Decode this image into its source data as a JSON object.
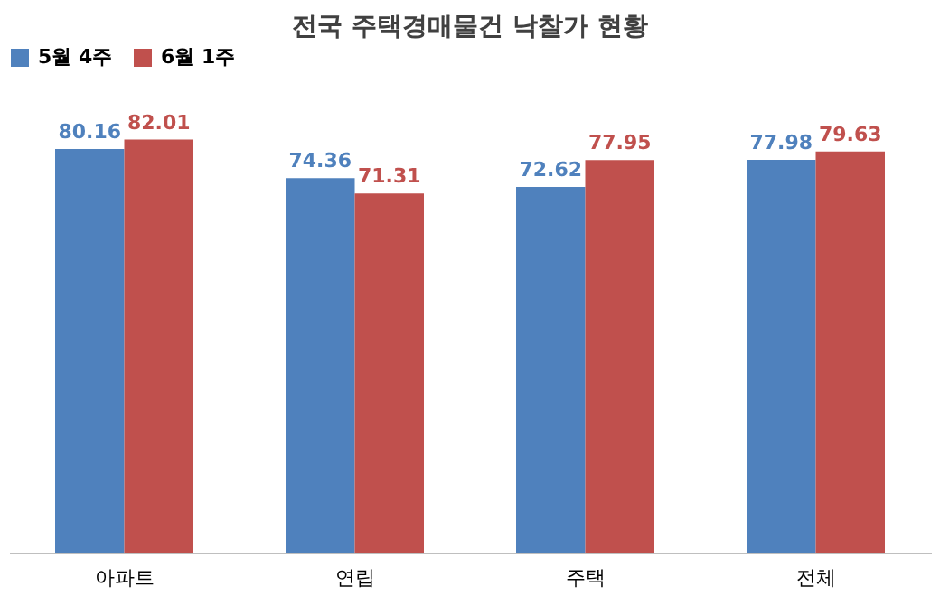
{
  "chart_data": {
    "type": "bar",
    "title": "전국 주택경매물건 낙찰가 현황",
    "categories": [
      "아파트",
      "연립",
      "주택",
      "전체"
    ],
    "series": [
      {
        "name": "5월 4주",
        "color": "#4f81bd",
        "values": [
          80.16,
          74.36,
          72.62,
          77.98
        ]
      },
      {
        "name": "6월 1주",
        "color": "#c0504d",
        "values": [
          82.01,
          71.31,
          77.95,
          79.63
        ]
      }
    ],
    "data_labels": true,
    "legend": "top",
    "grid": false,
    "tick_labels": "x"
  }
}
